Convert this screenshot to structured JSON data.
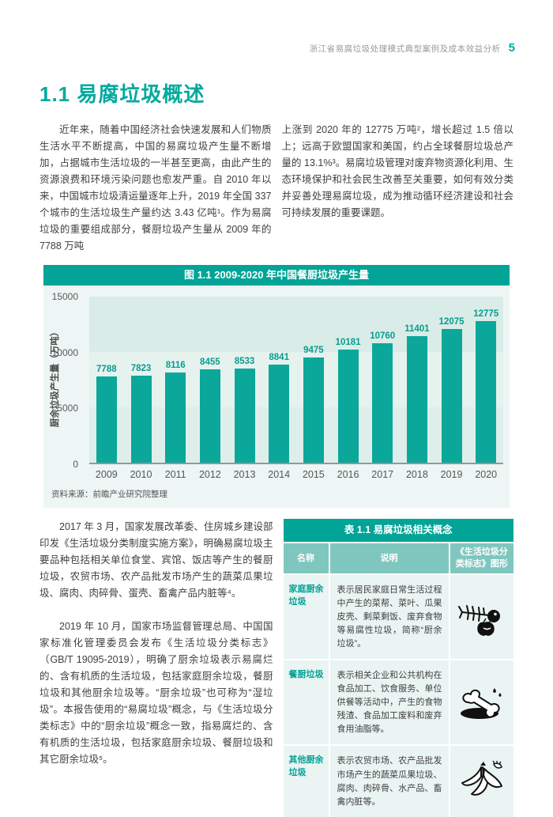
{
  "header": {
    "doc_title": "浙江省易腐垃圾处理模式典型案例及成本效益分析",
    "page_number": "5"
  },
  "section": {
    "title": "1.1 易腐垃圾概述"
  },
  "intro": {
    "left_column": "近年来，随着中国经济社会快速发展和人们物质生活水平不断提高，中国的易腐垃圾产生量不断增加，占据城市生活垃圾的一半甚至更高，由此产生的资源浪费和环境污染问题也愈发严重。自 2010 年以来，中国城市垃圾清运量逐年上升，2019 年全国 337 个城市的生活垃圾生产量约达 3.43 亿吨¹。作为易腐垃圾的重要组成部分，餐厨垃圾产生量从 2009 年的 7788 万吨",
    "right_column": "上涨到 2020 年的 12775 万吨²，增长超过 1.5 倍以上；远高于欧盟国家和美国，约占全球餐厨垃圾总产量的 13.1%³。易腐垃圾管理对废弃物资源化利用、生态环境保护和社会民生改善至关重要，如何有效分类并妥善处理易腐垃圾，成为推动循环经济建设和社会可持续发展的重要课题。"
  },
  "chart_data": {
    "type": "bar",
    "title": "图 1.1 2009-2020 年中国餐厨垃圾产生量",
    "categories": [
      "2009",
      "2010",
      "2011",
      "2012",
      "2013",
      "2014",
      "2015",
      "2016",
      "2017",
      "2018",
      "2019",
      "2020"
    ],
    "values": [
      7788,
      7823,
      8116,
      8455,
      8533,
      8841,
      9475,
      10181,
      10760,
      11401,
      12075,
      12775
    ],
    "xlabel": "",
    "ylabel": "厨余垃圾产生量（万吨）",
    "yticks": [
      0,
      5000,
      10000,
      15000
    ],
    "ylim": [
      0,
      15000
    ],
    "bar_color": "#0ba79a",
    "legend_position": "none",
    "grid": "horizontal-bands",
    "source": "资料来源：前瞻产业研究院整理"
  },
  "body_text": {
    "paragraph_1": "2017 年 3 月，国家发展改革委、住房城乡建设部印发《生活垃圾分类制度实施方案》，明确易腐垃圾主要品种包括相关单位食堂、宾馆、饭店等产生的餐厨垃圾，农贸市场、农产品批发市场产生的蔬菜瓜果垃圾、腐肉、肉碎骨、蛋壳、畜禽产品内脏等⁴。",
    "paragraph_2": "2019 年 10 月，国家市场监督管理总局、中国国家标准化管理委员会发布《生活垃圾分类标志》（GB/T 19095-2019），明确了厨余垃圾表示易腐烂的、含有机质的生活垃圾，包括家庭厨余垃圾，餐厨垃圾和其他厨余垃圾等。“厨余垃圾”也可称为“湿垃圾”。本报告使用的“易腐垃圾”概念，与《生活垃圾分类标志》中的“厨余垃圾”概念一致，指易腐烂的、含有机质的生活垃圾，包括家庭厨余垃圾、餐厨垃圾和其它厨余垃圾⁵。"
  },
  "table": {
    "title": "表 1.1 易腐垃圾相关概念",
    "columns": [
      "名称",
      "说明",
      "《生活垃圾分类标志》图形"
    ],
    "rows": [
      {
        "name": "家庭厨余垃圾",
        "desc": "表示居民家庭日常生活过程中产生的菜帮、菜叶、瓜果皮壳、剩菜剩饭、废弃食物等易腐性垃圾，简称“厨余垃圾”。",
        "icon": "fishbone-apple-core-icon"
      },
      {
        "name": "餐厨垃圾",
        "desc": "表示相关企业和公共机构在食品加工、饮食服务、单位供餐等活动中，产生的食物残渣、食品加工废料和废弃食用油脂等。",
        "icon": "bone-oil-icon"
      },
      {
        "name": "其他厨余垃圾",
        "desc": "表示农贸市场、农产品批发市场产生的蔬菜瓜果垃圾、腐肉、肉碎骨、水产品、畜禽内脏等。",
        "icon": "banana-peel-icon"
      }
    ]
  },
  "colors": {
    "accent_teal": "#00a99d",
    "chart_bar": "#0ba79a",
    "title_bar": "#01a496",
    "table_header": "#7fc7be",
    "table_row_bg": "#eaf4f2",
    "chart_card_bg": "#edf6f4"
  }
}
